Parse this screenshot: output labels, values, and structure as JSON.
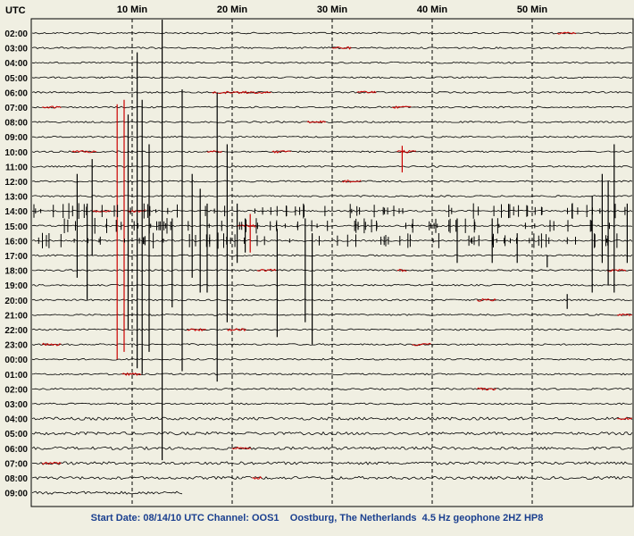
{
  "header": {
    "axis_title": "UTC"
  },
  "footer": {
    "caption": "Start Date: 08/14/10 UTC Channel: OOS1    Oostburg, The Netherlands  4.5 Hz geophone 2HZ HP8"
  },
  "colors": {
    "background": "#f0efe2",
    "trace": "#000000",
    "alternate_trace": "#cc0000",
    "gridline": "#000000",
    "caption": "#1a3f8f"
  },
  "chart_data": {
    "type": "line",
    "title": "",
    "xlabel": "",
    "ylabel": "UTC",
    "x_range_minutes": [
      0,
      60
    ],
    "x_ticks": [
      {
        "minute": 10,
        "label": "10 Min"
      },
      {
        "minute": 20,
        "label": "20 Min"
      },
      {
        "minute": 30,
        "label": "30 Min"
      },
      {
        "minute": 40,
        "label": "40 Min"
      },
      {
        "minute": 50,
        "label": "50 Min"
      }
    ],
    "grid": "dashed vertical lines at 10-minute intervals",
    "hours": [
      "02:00",
      "03:00",
      "04:00",
      "05:00",
      "06:00",
      "07:00",
      "08:00",
      "09:00",
      "10:00",
      "11:00",
      "12:00",
      "13:00",
      "14:00",
      "15:00",
      "16:00",
      "17:00",
      "18:00",
      "19:00",
      "20:00",
      "21:00",
      "22:00",
      "23:00",
      "00:00",
      "01:00",
      "02:00",
      "03:00",
      "04:00",
      "05:00",
      "06:00",
      "07:00",
      "08:00",
      "09:00"
    ],
    "last_row_end_minute": 15,
    "red_segments": [
      {
        "row": 0,
        "start": 52.5,
        "end": 54.5
      },
      {
        "row": 1,
        "start": 30,
        "end": 32
      },
      {
        "row": 4,
        "start": 18,
        "end": 24
      },
      {
        "row": 4,
        "start": 32.5,
        "end": 34.5
      },
      {
        "row": 5,
        "start": 1,
        "end": 3
      },
      {
        "row": 5,
        "start": 36,
        "end": 38
      },
      {
        "row": 6,
        "start": 27.5,
        "end": 29.5
      },
      {
        "row": 8,
        "start": 4,
        "end": 6.5
      },
      {
        "row": 8,
        "start": 17.5,
        "end": 19
      },
      {
        "row": 8,
        "start": 24,
        "end": 26
      },
      {
        "row": 8,
        "start": 36.5,
        "end": 38.5
      },
      {
        "row": 10,
        "start": 31,
        "end": 33
      },
      {
        "row": 12,
        "start": 6,
        "end": 8
      },
      {
        "row": 12,
        "start": 9.5,
        "end": 11.5
      },
      {
        "row": 13,
        "start": 20.5,
        "end": 22.5
      },
      {
        "row": 16,
        "start": 22.5,
        "end": 24.5
      },
      {
        "row": 16,
        "start": 36.5,
        "end": 37.5
      },
      {
        "row": 16,
        "start": 57.5,
        "end": 59.5
      },
      {
        "row": 18,
        "start": 44.5,
        "end": 46.5
      },
      {
        "row": 19,
        "start": 58.5,
        "end": 60
      },
      {
        "row": 20,
        "start": 15.5,
        "end": 17.5
      },
      {
        "row": 20,
        "start": 19.5,
        "end": 21.5
      },
      {
        "row": 21,
        "start": 1,
        "end": 3
      },
      {
        "row": 21,
        "start": 38,
        "end": 40
      },
      {
        "row": 23,
        "start": 9,
        "end": 11
      },
      {
        "row": 24,
        "start": 44.5,
        "end": 46.5
      },
      {
        "row": 26,
        "start": 58.5,
        "end": 60
      },
      {
        "row": 28,
        "start": 20,
        "end": 22
      },
      {
        "row": 29,
        "start": 1,
        "end": 3
      },
      {
        "row": 30,
        "start": 22,
        "end": 23
      }
    ],
    "spikes": [
      {
        "minute": 10.5,
        "top_row": 1.3,
        "bottom_row": 22.6,
        "color": "black"
      },
      {
        "minute": 13,
        "top_row": -1.2,
        "bottom_row": 28.8,
        "color": "black"
      },
      {
        "minute": 8.5,
        "top_row": 4.8,
        "bottom_row": 22.0,
        "color": "red"
      },
      {
        "minute": 9.2,
        "top_row": 4.5,
        "bottom_row": 21.5,
        "color": "red"
      },
      {
        "minute": 9.6,
        "top_row": 5.5,
        "bottom_row": 20.0,
        "color": "black"
      },
      {
        "minute": 11,
        "top_row": 4.5,
        "bottom_row": 23.0,
        "color": "black"
      },
      {
        "minute": 11.7,
        "top_row": 7.5,
        "bottom_row": 21.5,
        "color": "black"
      },
      {
        "minute": 14,
        "top_row": 12.5,
        "bottom_row": 18.5,
        "color": "black"
      },
      {
        "minute": 15,
        "top_row": 3.8,
        "bottom_row": 22.8,
        "color": "black"
      },
      {
        "minute": 16,
        "top_row": 9.5,
        "bottom_row": 16.5,
        "color": "black"
      },
      {
        "minute": 16.8,
        "top_row": 10.5,
        "bottom_row": 17.5,
        "color": "black"
      },
      {
        "minute": 17.5,
        "top_row": 11.5,
        "bottom_row": 17.5,
        "color": "black"
      },
      {
        "minute": 18.5,
        "top_row": 4.0,
        "bottom_row": 23.5,
        "color": "black"
      },
      {
        "minute": 19.5,
        "top_row": 7.5,
        "bottom_row": 19.5,
        "color": "black"
      },
      {
        "minute": 20.5,
        "top_row": 11.5,
        "bottom_row": 15.5,
        "color": "black"
      },
      {
        "minute": 21.3,
        "top_row": 12.5,
        "bottom_row": 14.8,
        "color": "black"
      },
      {
        "minute": 21.8,
        "top_row": 12.2,
        "bottom_row": 14.8,
        "color": "red"
      },
      {
        "minute": 24.5,
        "top_row": 13.2,
        "bottom_row": 20.5,
        "color": "black"
      },
      {
        "minute": 27.3,
        "top_row": 12.5,
        "bottom_row": 19.5,
        "color": "black"
      },
      {
        "minute": 28,
        "top_row": 13.5,
        "bottom_row": 21.0,
        "color": "black"
      },
      {
        "minute": 37,
        "top_row": 7.6,
        "bottom_row": 9.4,
        "color": "red"
      },
      {
        "minute": 42.5,
        "top_row": 12.5,
        "bottom_row": 15.5,
        "color": "black"
      },
      {
        "minute": 46,
        "top_row": 12.5,
        "bottom_row": 15.5,
        "color": "black"
      },
      {
        "minute": 48.5,
        "top_row": 13.5,
        "bottom_row": 15.5,
        "color": "black"
      },
      {
        "minute": 51.5,
        "top_row": 15.0,
        "bottom_row": 15.8,
        "color": "black"
      },
      {
        "minute": 53.5,
        "top_row": 17.6,
        "bottom_row": 18.6,
        "color": "black"
      },
      {
        "minute": 56,
        "top_row": 11.0,
        "bottom_row": 17.5,
        "color": "black"
      },
      {
        "minute": 57,
        "top_row": 9.5,
        "bottom_row": 15.5,
        "color": "black"
      },
      {
        "minute": 57.6,
        "top_row": 10.0,
        "bottom_row": 17.0,
        "color": "black"
      },
      {
        "minute": 58.2,
        "top_row": 7.5,
        "bottom_row": 17.5,
        "color": "black"
      },
      {
        "minute": 59.5,
        "top_row": 11.5,
        "bottom_row": 15.5,
        "color": "black"
      },
      {
        "minute": 4.5,
        "top_row": 9.5,
        "bottom_row": 16.5,
        "color": "black"
      },
      {
        "minute": 5.5,
        "top_row": 11.5,
        "bottom_row": 18.0,
        "color": "black"
      },
      {
        "minute": 6.0,
        "top_row": 8.5,
        "bottom_row": 15.0,
        "color": "black"
      }
    ]
  }
}
